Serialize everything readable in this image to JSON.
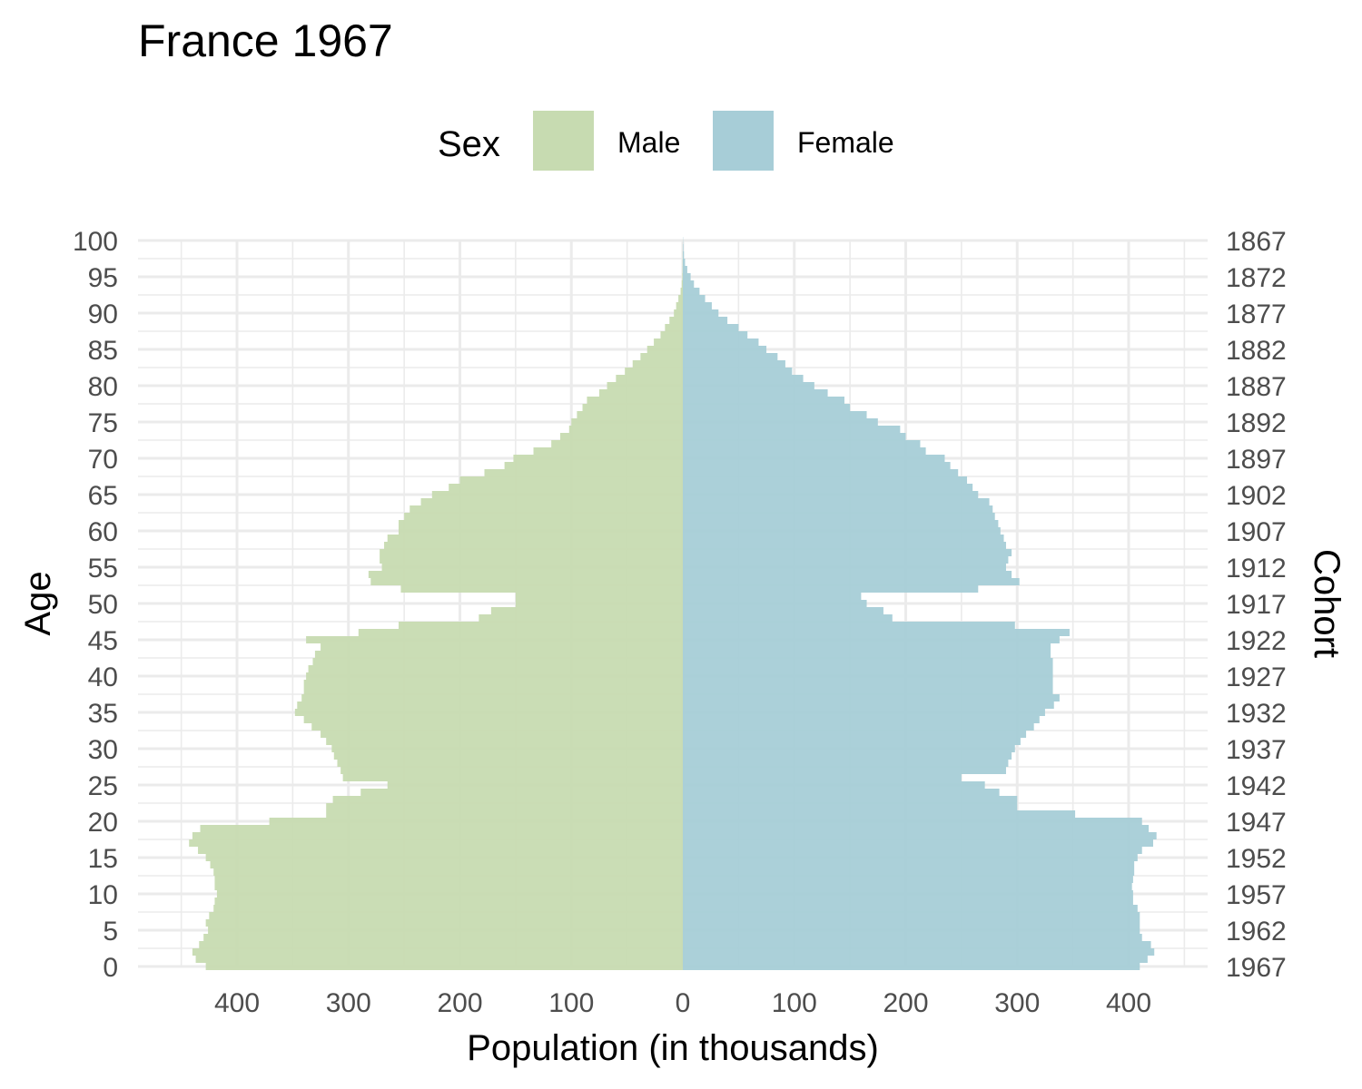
{
  "chart_data": {
    "type": "bar",
    "title": "France 1967",
    "legend": {
      "title": "Sex",
      "position": "top"
    },
    "xlabel": "Population (in thousands)",
    "ylabel": "Age",
    "y2label": "Cohort",
    "xlim": [
      -450,
      450
    ],
    "ylim": [
      0,
      100
    ],
    "x_ticks": [
      -400,
      -300,
      -200,
      -100,
      0,
      100,
      200,
      300,
      400
    ],
    "x_tick_labels": [
      "400",
      "300",
      "200",
      "100",
      "0",
      "100",
      "200",
      "300",
      "400"
    ],
    "y_ticks": [
      0,
      5,
      10,
      15,
      20,
      25,
      30,
      35,
      40,
      45,
      50,
      55,
      60,
      65,
      70,
      75,
      80,
      85,
      90,
      95,
      100
    ],
    "y_tick_labels": [
      "0",
      "5",
      "10",
      "15",
      "20",
      "25",
      "30",
      "35",
      "40",
      "45",
      "50",
      "55",
      "60",
      "65",
      "70",
      "75",
      "80",
      "85",
      "90",
      "95",
      "100"
    ],
    "y2_tick_labels": [
      "1967",
      "1962",
      "1957",
      "1952",
      "1947",
      "1942",
      "1937",
      "1932",
      "1927",
      "1922",
      "1917",
      "1912",
      "1907",
      "1902",
      "1897",
      "1892",
      "1887",
      "1882",
      "1877",
      "1872",
      "1867"
    ],
    "grid": true,
    "ages": [
      0,
      1,
      2,
      3,
      4,
      5,
      6,
      7,
      8,
      9,
      10,
      11,
      12,
      13,
      14,
      15,
      16,
      17,
      18,
      19,
      20,
      21,
      22,
      23,
      24,
      25,
      26,
      27,
      28,
      29,
      30,
      31,
      32,
      33,
      34,
      35,
      36,
      37,
      38,
      39,
      40,
      41,
      42,
      43,
      44,
      45,
      46,
      47,
      48,
      49,
      50,
      51,
      52,
      53,
      54,
      55,
      56,
      57,
      58,
      59,
      60,
      61,
      62,
      63,
      64,
      65,
      66,
      67,
      68,
      69,
      70,
      71,
      72,
      73,
      74,
      75,
      76,
      77,
      78,
      79,
      80,
      81,
      82,
      83,
      84,
      85,
      86,
      87,
      88,
      89,
      90,
      91,
      92,
      93,
      94,
      95,
      96,
      97,
      98,
      99,
      100
    ],
    "series": [
      {
        "name": "Male",
        "color": "#c7dbb1",
        "values": [
          428,
          437,
          440,
          434,
          430,
          426,
          428,
          425,
          421,
          420,
          418,
          420,
          420,
          421,
          424,
          428,
          435,
          443,
          440,
          433,
          371,
          320,
          320,
          314,
          289,
          265,
          305,
          307,
          310,
          313,
          315,
          320,
          325,
          333,
          340,
          348,
          346,
          342,
          340,
          340,
          338,
          336,
          332,
          330,
          325,
          338,
          291,
          255,
          183,
          172,
          150,
          150,
          253,
          280,
          282,
          270,
          272,
          272,
          268,
          265,
          255,
          255,
          250,
          245,
          235,
          225,
          210,
          200,
          178,
          160,
          152,
          134,
          118,
          110,
          102,
          100,
          95,
          90,
          86,
          75,
          68,
          60,
          52,
          45,
          38,
          32,
          26,
          20,
          16,
          12,
          8,
          6,
          4,
          2,
          1,
          0.5,
          0.3,
          0.2,
          0.1,
          0.05,
          0.02
        ]
      },
      {
        "name": "Female",
        "color": "#a7cdd7",
        "values": [
          410,
          417,
          423,
          420,
          412,
          410,
          410,
          410,
          408,
          404,
          404,
          403,
          404,
          405,
          405,
          408,
          412,
          422,
          425,
          418,
          412,
          352,
          300,
          300,
          284,
          271,
          250,
          290,
          292,
          295,
          298,
          303,
          308,
          315,
          320,
          325,
          333,
          338,
          332,
          332,
          332,
          332,
          332,
          330,
          330,
          338,
          347,
          298,
          188,
          180,
          165,
          160,
          265,
          302,
          295,
          290,
          292,
          295,
          290,
          288,
          285,
          283,
          280,
          278,
          275,
          265,
          260,
          255,
          247,
          240,
          235,
          218,
          213,
          200,
          195,
          175,
          165,
          150,
          145,
          130,
          118,
          108,
          98,
          92,
          85,
          75,
          68,
          58,
          50,
          40,
          32,
          26,
          20,
          15,
          10,
          7,
          4,
          2,
          1,
          0.5,
          0.2
        ]
      }
    ]
  }
}
